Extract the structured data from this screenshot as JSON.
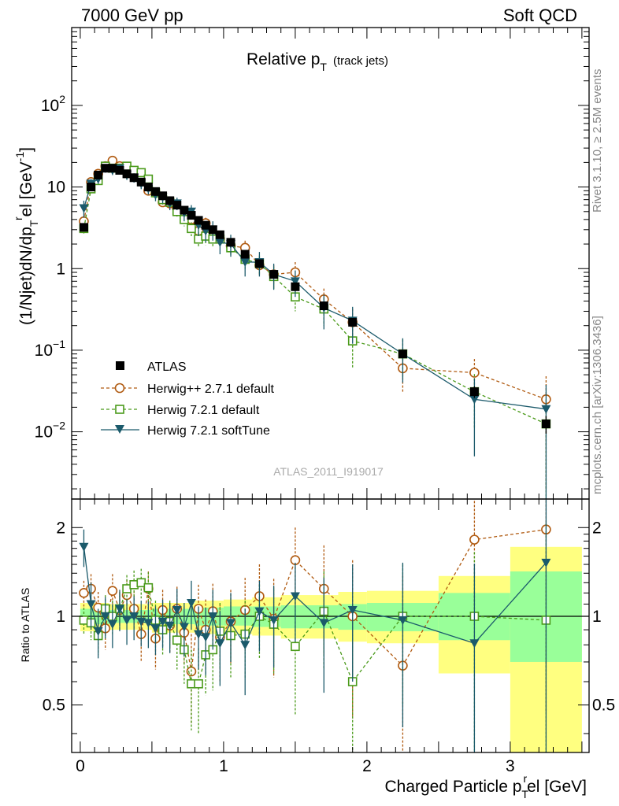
{
  "header": {
    "left": "7000 GeV pp",
    "right": "Soft QCD"
  },
  "side_labels": {
    "rivet": "Rivet 3.1.10, ≥ 2.5M events",
    "mcplots": "mcplots.cern.ch [arXiv:1306.3436]"
  },
  "analysis_id": "ATLAS_2011_I919017",
  "colors": {
    "atlas": "#000000",
    "herwigpp": "#b05a10",
    "herwig_default": "#4a9a1a",
    "herwig_soft": "#1b5a6b",
    "band_yellow": "#ffff80",
    "band_green": "#99ff99"
  },
  "chart_data": [
    {
      "id": "main",
      "type": "scatter",
      "title": "Relative p_T (track jets)",
      "title_main": "Relative p",
      "title_sub": "T",
      "title_suffix": "(track jets)",
      "ylabel": "(1/Njet)dN/dp_T^rel [GeV^-1]",
      "ylabel_parts": {
        "a": "(1/Njet)dN/dp",
        "sub": "T",
        "sup_r": "r",
        "b": "el [GeV",
        "sup_m1": "-1",
        "c": "]"
      },
      "yscale": "log",
      "xlim": [
        -0.06,
        3.55
      ],
      "ylim": [
        0.0015,
        900
      ],
      "yticks": [
        {
          "v": 0.01,
          "base": "10",
          "exp": "−2"
        },
        {
          "v": 0.1,
          "base": "10",
          "exp": "−1"
        },
        {
          "v": 1,
          "base": "1",
          "exp": ""
        },
        {
          "v": 10,
          "base": "10",
          "exp": ""
        },
        {
          "v": 100,
          "base": "10",
          "exp": "2"
        }
      ],
      "legend_position": "bottom-left",
      "legend": [
        {
          "key": "atlas",
          "label": "ATLAS",
          "marker": "square-filled"
        },
        {
          "key": "herwigpp",
          "label": "Herwig++ 2.7.1 default",
          "marker": "circle-open",
          "dash": "dashed"
        },
        {
          "key": "herwig_default",
          "label": "Herwig 7.2.1 default",
          "marker": "square-open",
          "dash": "dashed"
        },
        {
          "key": "herwig_soft",
          "label": "Herwig 7.2.1 softTune",
          "marker": "triangle-down-filled",
          "dash": "solid"
        }
      ],
      "series": [
        {
          "key": "atlas",
          "name": "ATLAS",
          "x": [
            0.025,
            0.075,
            0.125,
            0.175,
            0.225,
            0.275,
            0.325,
            0.375,
            0.425,
            0.475,
            0.525,
            0.575,
            0.625,
            0.675,
            0.725,
            0.775,
            0.825,
            0.875,
            0.925,
            0.975,
            1.05,
            1.15,
            1.25,
            1.35,
            1.5,
            1.7,
            1.9,
            2.25,
            2.75,
            3.25
          ],
          "y": [
            3.2,
            10,
            14,
            17,
            17,
            16,
            14.5,
            13,
            11.5,
            10,
            8.8,
            7.8,
            6.8,
            6,
            5.2,
            4.5,
            3.9,
            3.4,
            3.0,
            2.6,
            2.1,
            1.5,
            1.15,
            0.85,
            0.6,
            0.35,
            0.22,
            0.09,
            0.031,
            0.0125
          ],
          "err": [
            0.3,
            0.6,
            0.8,
            1,
            1,
            1,
            0.8,
            0.7,
            0.6,
            0.5,
            0.5,
            0.4,
            0.4,
            0.3,
            0.3,
            0.25,
            0.2,
            0.2,
            0.17,
            0.15,
            0.12,
            0.09,
            0.07,
            0.05,
            0.04,
            0.03,
            0.02,
            0.01,
            0.005,
            0.003
          ]
        },
        {
          "key": "herwigpp",
          "name": "Herwig++ 2.7.1 default",
          "x": [
            0.025,
            0.075,
            0.125,
            0.175,
            0.225,
            0.275,
            0.325,
            0.375,
            0.425,
            0.475,
            0.525,
            0.575,
            0.625,
            0.675,
            0.725,
            0.775,
            0.825,
            0.875,
            0.925,
            0.975,
            1.05,
            1.15,
            1.25,
            1.35,
            1.5,
            1.7,
            1.9,
            2.25,
            2.75,
            3.25
          ],
          "y": [
            3.8,
            11.5,
            14.5,
            18,
            21,
            18,
            16,
            15,
            12.5,
            9,
            8.5,
            6.5,
            6.3,
            5.5,
            4.6,
            4,
            2.9,
            3.6,
            2.6,
            2.3,
            1.9,
            1.8,
            1.1,
            0.85,
            0.9,
            0.42,
            0.22,
            0.06,
            0.053,
            0.025
          ],
          "err": [
            0.5,
            1.0,
            1.3,
            1.5,
            1.8,
            1.5,
            1.4,
            1.3,
            1.2,
            0.9,
            0.9,
            0.7,
            0.7,
            0.6,
            0.6,
            0.6,
            0.5,
            0.6,
            0.5,
            0.5,
            0.4,
            0.4,
            0.3,
            0.25,
            0.3,
            0.15,
            0.1,
            0.03,
            0.025,
            0.023
          ]
        },
        {
          "key": "herwig_default",
          "name": "Herwig 7.2.1 default",
          "x": [
            0.025,
            0.075,
            0.125,
            0.175,
            0.225,
            0.275,
            0.325,
            0.375,
            0.425,
            0.475,
            0.525,
            0.575,
            0.625,
            0.675,
            0.725,
            0.775,
            0.825,
            0.875,
            0.925,
            0.975,
            1.05,
            1.15,
            1.25,
            1.35,
            1.5,
            1.7,
            1.9,
            2.25,
            2.75,
            3.25
          ],
          "y": [
            3.1,
            9.5,
            12,
            18,
            17,
            17,
            18,
            16,
            15,
            12.5,
            8.5,
            7,
            6.5,
            5,
            4,
            3.1,
            2.3,
            2.5,
            2.3,
            2.3,
            1.8,
            1.3,
            1.15,
            0.8,
            0.45,
            0.32,
            0.13,
            0.09,
            0.031,
            0.0125
          ],
          "err": [
            0.5,
            1.0,
            1.3,
            1.6,
            1.6,
            1.6,
            1.7,
            1.6,
            1.5,
            1.3,
            1.0,
            0.9,
            0.9,
            0.8,
            0.7,
            0.6,
            0.5,
            0.55,
            0.5,
            0.5,
            0.4,
            0.35,
            0.3,
            0.25,
            0.15,
            0.12,
            0.07,
            0.045,
            0.02,
            0.0124
          ]
        },
        {
          "key": "herwig_soft",
          "name": "Herwig 7.2.1 softTune",
          "x": [
            0.025,
            0.075,
            0.125,
            0.175,
            0.225,
            0.275,
            0.325,
            0.375,
            0.425,
            0.475,
            0.525,
            0.575,
            0.625,
            0.675,
            0.725,
            0.775,
            0.825,
            0.875,
            0.925,
            0.975,
            1.05,
            1.15,
            1.25,
            1.35,
            1.5,
            1.7,
            1.9,
            2.25,
            2.75,
            3.25
          ],
          "y": [
            5.5,
            11,
            12.5,
            17,
            16,
            17,
            14,
            13,
            11,
            9.5,
            8,
            7.5,
            6.3,
            6.3,
            4.8,
            5,
            3.4,
            2.9,
            3.0,
            2.1,
            2.0,
            1.2,
            1.2,
            0.85,
            0.7,
            0.33,
            0.23,
            0.09,
            0.025,
            0.019
          ],
          "err": [
            1.3,
            1.5,
            1.6,
            2.0,
            2.0,
            2.0,
            1.8,
            1.7,
            1.6,
            1.4,
            1.3,
            1.2,
            1.1,
            1.1,
            1.0,
            1.0,
            0.9,
            0.8,
            0.8,
            0.6,
            0.6,
            0.4,
            0.4,
            0.3,
            0.25,
            0.15,
            0.11,
            0.05,
            0.02,
            0.0186
          ]
        }
      ]
    },
    {
      "id": "ratio",
      "type": "scatter",
      "ylabel": "Ratio to ATLAS",
      "xlabel": "Charged Particle p_T^rel [GeV]",
      "xlabel_parts": {
        "a": "Charged Particle p",
        "sub": "T",
        "sup_r": "r",
        "b": "el [GeV]"
      },
      "yscale": "log",
      "xlim": [
        -0.06,
        3.55
      ],
      "ylim": [
        0.345,
        2.5
      ],
      "xticks": [
        0,
        1,
        2,
        3
      ],
      "yticks": [
        0.5,
        1,
        2
      ],
      "reference": 1,
      "bands": [
        {
          "x0": 0.0,
          "x1": 0.2,
          "g": [
            0.94,
            1.06
          ],
          "y": [
            0.89,
            1.11
          ]
        },
        {
          "x0": 0.2,
          "x1": 0.5,
          "g": [
            0.95,
            1.05
          ],
          "y": [
            0.9,
            1.1
          ]
        },
        {
          "x0": 0.5,
          "x1": 0.8,
          "g": [
            0.94,
            1.06
          ],
          "y": [
            0.88,
            1.11
          ]
        },
        {
          "x0": 0.8,
          "x1": 1.0,
          "g": [
            0.93,
            1.07
          ],
          "y": [
            0.87,
            1.13
          ]
        },
        {
          "x0": 1.0,
          "x1": 1.2,
          "g": [
            0.93,
            1.08
          ],
          "y": [
            0.87,
            1.14
          ]
        },
        {
          "x0": 1.2,
          "x1": 1.4,
          "g": [
            0.92,
            1.08
          ],
          "y": [
            0.86,
            1.16
          ]
        },
        {
          "x0": 1.4,
          "x1": 1.8,
          "g": [
            0.91,
            1.09
          ],
          "y": [
            0.84,
            1.18
          ]
        },
        {
          "x0": 1.8,
          "x1": 2.0,
          "g": [
            0.9,
            1.1
          ],
          "y": [
            0.82,
            1.21
          ]
        },
        {
          "x0": 2.0,
          "x1": 2.5,
          "g": [
            0.89,
            1.11
          ],
          "y": [
            0.81,
            1.22
          ]
        },
        {
          "x0": 2.5,
          "x1": 3.0,
          "g": [
            0.83,
            1.2
          ],
          "y": [
            0.64,
            1.37
          ]
        },
        {
          "x0": 3.0,
          "x1": 3.5,
          "g": [
            0.7,
            1.42
          ],
          "y": [
            0.345,
            1.72
          ]
        }
      ],
      "series": [
        {
          "key": "herwigpp",
          "x": [
            0.025,
            0.075,
            0.125,
            0.175,
            0.225,
            0.275,
            0.325,
            0.375,
            0.425,
            0.475,
            0.525,
            0.575,
            0.625,
            0.675,
            0.725,
            0.775,
            0.825,
            0.875,
            0.925,
            0.975,
            1.05,
            1.15,
            1.25,
            1.35,
            1.5,
            1.7,
            1.9,
            2.25,
            2.75,
            3.25
          ],
          "y": [
            1.2,
            1.24,
            1.07,
            0.91,
            1.22,
            1.05,
            1.18,
            1.06,
            0.87,
            1.24,
            0.84,
            1.05,
            0.93,
            1.06,
            0.88,
            0.65,
            1.06,
            0.9,
            1.04,
            0.85,
            0.96,
            1.05,
            1.17,
            0.98,
            1.55,
            1.24,
            1.0,
            0.68,
            1.82,
            1.97
          ],
          "err": [
            0.12,
            0.15,
            0.14,
            0.14,
            0.17,
            0.16,
            0.15,
            0.16,
            0.17,
            0.18,
            0.18,
            0.18,
            0.18,
            0.2,
            0.2,
            0.22,
            0.22,
            0.24,
            0.25,
            0.25,
            0.27,
            0.3,
            0.33,
            0.36,
            0.45,
            0.5,
            0.55,
            0.7,
            0.8,
            1.5
          ]
        },
        {
          "key": "herwig_default",
          "x": [
            0.025,
            0.075,
            0.125,
            0.175,
            0.225,
            0.275,
            0.325,
            0.375,
            0.425,
            0.475,
            0.525,
            0.575,
            0.625,
            0.675,
            0.725,
            0.775,
            0.825,
            0.875,
            0.925,
            0.975,
            1.05,
            1.15,
            1.25,
            1.35,
            1.5,
            1.7,
            1.9,
            2.25,
            2.75,
            3.25
          ],
          "y": [
            0.97,
            0.95,
            0.86,
            1.06,
            1.0,
            1.06,
            1.24,
            1.28,
            1.3,
            1.25,
            0.97,
            0.9,
            0.96,
            0.83,
            0.77,
            0.59,
            0.59,
            0.74,
            0.77,
            0.89,
            0.86,
            0.87,
            1.0,
            0.94,
            0.79,
            1.04,
            0.6,
            1.0,
            1.0,
            0.97
          ],
          "err": [
            0.1,
            0.12,
            0.12,
            0.12,
            0.13,
            0.13,
            0.14,
            0.15,
            0.15,
            0.16,
            0.16,
            0.16,
            0.17,
            0.17,
            0.18,
            0.18,
            0.19,
            0.2,
            0.21,
            0.22,
            0.24,
            0.26,
            0.28,
            0.3,
            0.33,
            0.38,
            0.42,
            0.5,
            0.65,
            1.1
          ]
        },
        {
          "key": "herwig_soft",
          "x": [
            0.025,
            0.075,
            0.125,
            0.175,
            0.225,
            0.275,
            0.325,
            0.375,
            0.425,
            0.475,
            0.525,
            0.575,
            0.625,
            0.675,
            0.725,
            0.775,
            0.825,
            0.875,
            0.925,
            0.975,
            1.05,
            1.15,
            1.25,
            1.35,
            1.5,
            1.7,
            1.9,
            2.25,
            2.75,
            3.25
          ],
          "y": [
            1.72,
            1.1,
            0.89,
            1.0,
            0.94,
            1.06,
            0.97,
            1.0,
            0.96,
            0.95,
            0.91,
            0.96,
            0.93,
            1.05,
            0.92,
            1.11,
            0.87,
            0.85,
            1.0,
            0.81,
            0.95,
            0.8,
            1.04,
            0.97,
            1.17,
            0.95,
            1.05,
            0.97,
            0.81,
            1.52
          ],
          "err": [
            0.25,
            0.2,
            0.17,
            0.16,
            0.16,
            0.17,
            0.17,
            0.17,
            0.17,
            0.17,
            0.17,
            0.18,
            0.18,
            0.19,
            0.19,
            0.21,
            0.21,
            0.22,
            0.23,
            0.23,
            0.25,
            0.26,
            0.28,
            0.3,
            0.35,
            0.4,
            0.45,
            0.55,
            0.7,
            1.2
          ]
        }
      ]
    }
  ]
}
